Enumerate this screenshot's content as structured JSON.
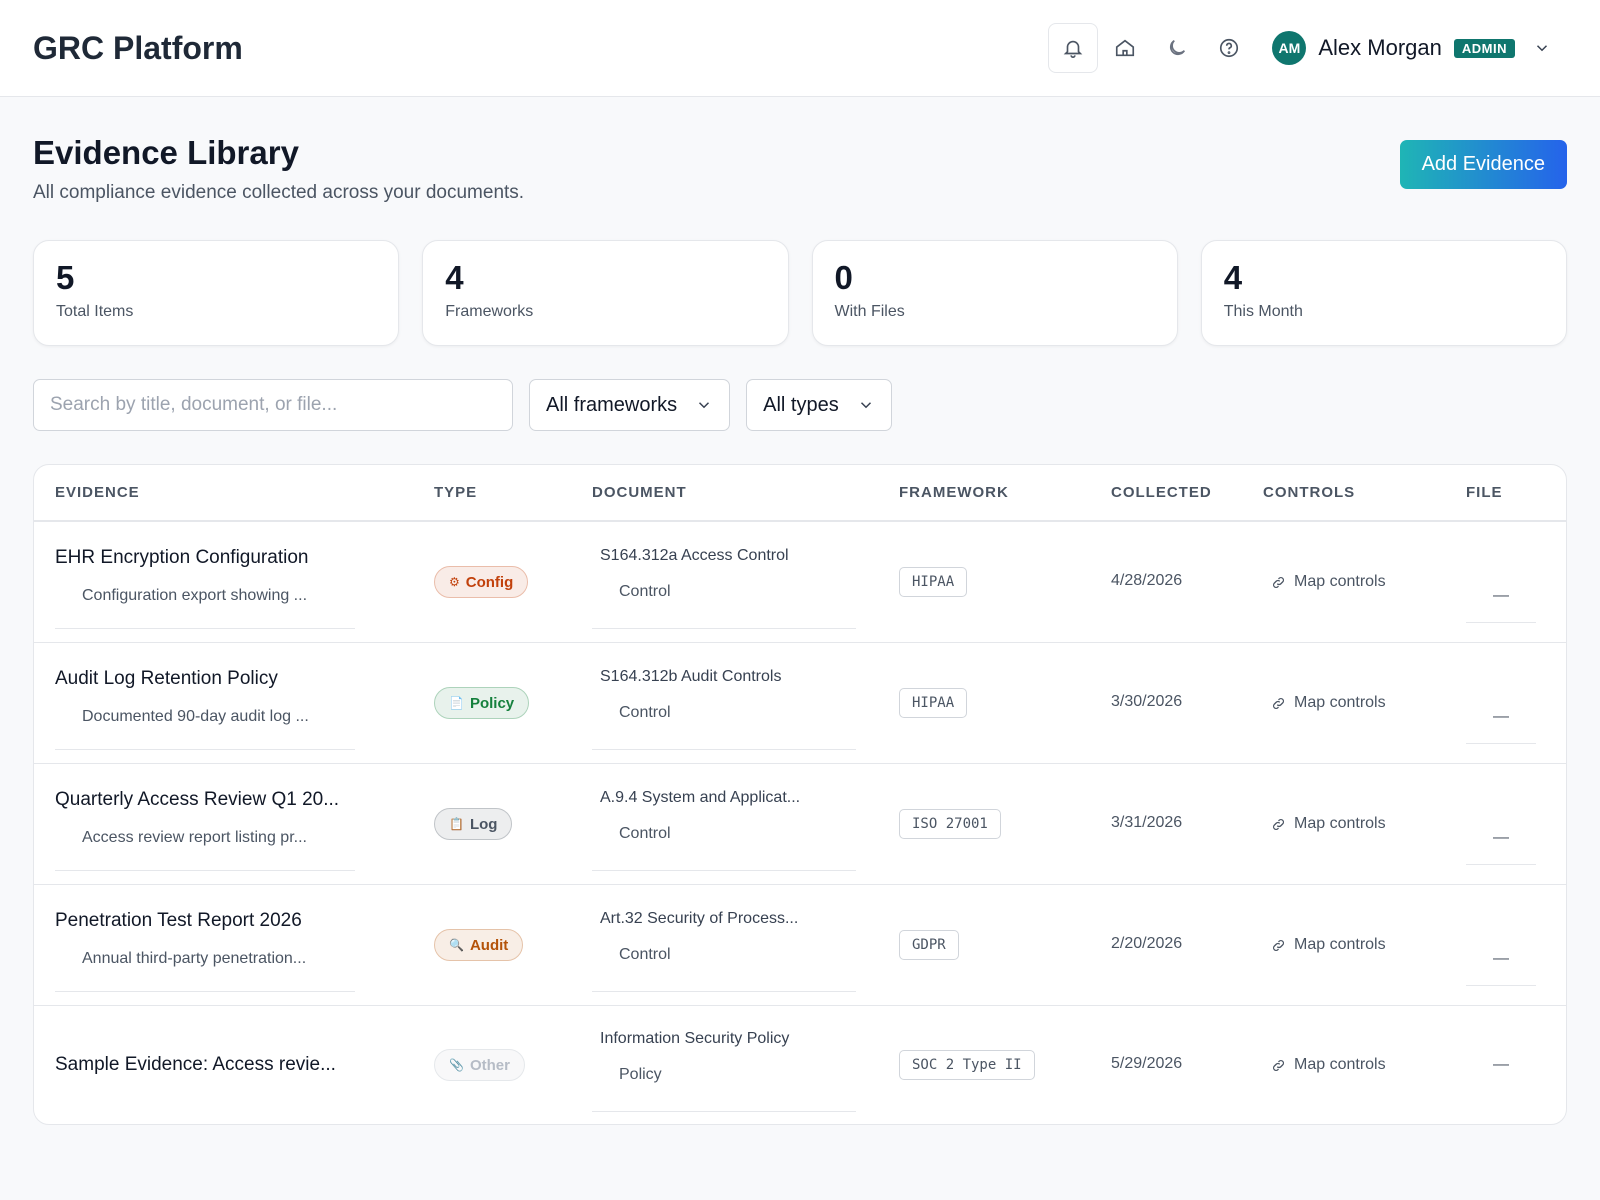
{
  "header": {
    "title": "GRC Platform",
    "user": {
      "initials": "AM",
      "name": "Alex Morgan",
      "role": "ADMIN"
    }
  },
  "page": {
    "title": "Evidence Library",
    "subtitle": "All compliance evidence collected across your documents.",
    "add_button": "Add Evidence"
  },
  "stats": [
    {
      "value": 5,
      "label": "Total Items"
    },
    {
      "value": 4,
      "label": "Frameworks"
    },
    {
      "value": 0,
      "label": "With Files"
    },
    {
      "value": 4,
      "label": "This Month"
    }
  ],
  "filters": {
    "search_placeholder": "Search by title, document, or file...",
    "framework": "All frameworks",
    "type": "All types"
  },
  "table": {
    "columns": [
      "EVIDENCE",
      "TYPE",
      "DOCUMENT",
      "FRAMEWORK",
      "COLLECTED",
      "CONTROLS",
      "FILE"
    ],
    "rows": [
      {
        "title": "EHR Encryption Configuration",
        "description": "Configuration export showing ...",
        "type_icon": "⚙",
        "type": "Config",
        "type_color": "#c2410c",
        "document": "S164.312a Access Control",
        "document_kind": "Control",
        "framework": "HIPAA",
        "collected": "4/28/2026",
        "controls": "Map controls",
        "file": "—"
      },
      {
        "title": "Audit Log Retention Policy",
        "description": "Documented 90-day audit log ...",
        "type_icon": "📄",
        "type": "Policy",
        "type_color": "#15803d",
        "document": "S164.312b Audit Controls",
        "document_kind": "Control",
        "framework": "HIPAA",
        "collected": "3/30/2026",
        "controls": "Map controls",
        "file": "—"
      },
      {
        "title": "Quarterly Access Review Q1 20...",
        "description": "Access review report listing pr...",
        "type_icon": "📋",
        "type": "Log",
        "type_color": "#4b5563",
        "document": "A.9.4 System and Applicat...",
        "document_kind": "Control",
        "framework": "ISO 27001",
        "collected": "3/31/2026",
        "controls": "Map controls",
        "file": "—"
      },
      {
        "title": "Penetration Test Report 2026",
        "description": "Annual third-party penetration...",
        "type_icon": "🔍",
        "type": "Audit",
        "type_color": "#b45309",
        "document": "Art.32 Security of Process...",
        "document_kind": "Control",
        "framework": "GDPR",
        "collected": "2/20/2026",
        "controls": "Map controls",
        "file": "—"
      },
      {
        "title": "Sample Evidence: Access revie...",
        "description": null,
        "type_icon": "📎",
        "type": "Other",
        "type_color": "#b6bcc6",
        "document": "Information Security Policy",
        "document_kind": "Policy",
        "framework": "SOC 2 Type II",
        "collected": "5/29/2026",
        "controls": "Map controls",
        "file": "—"
      }
    ]
  }
}
